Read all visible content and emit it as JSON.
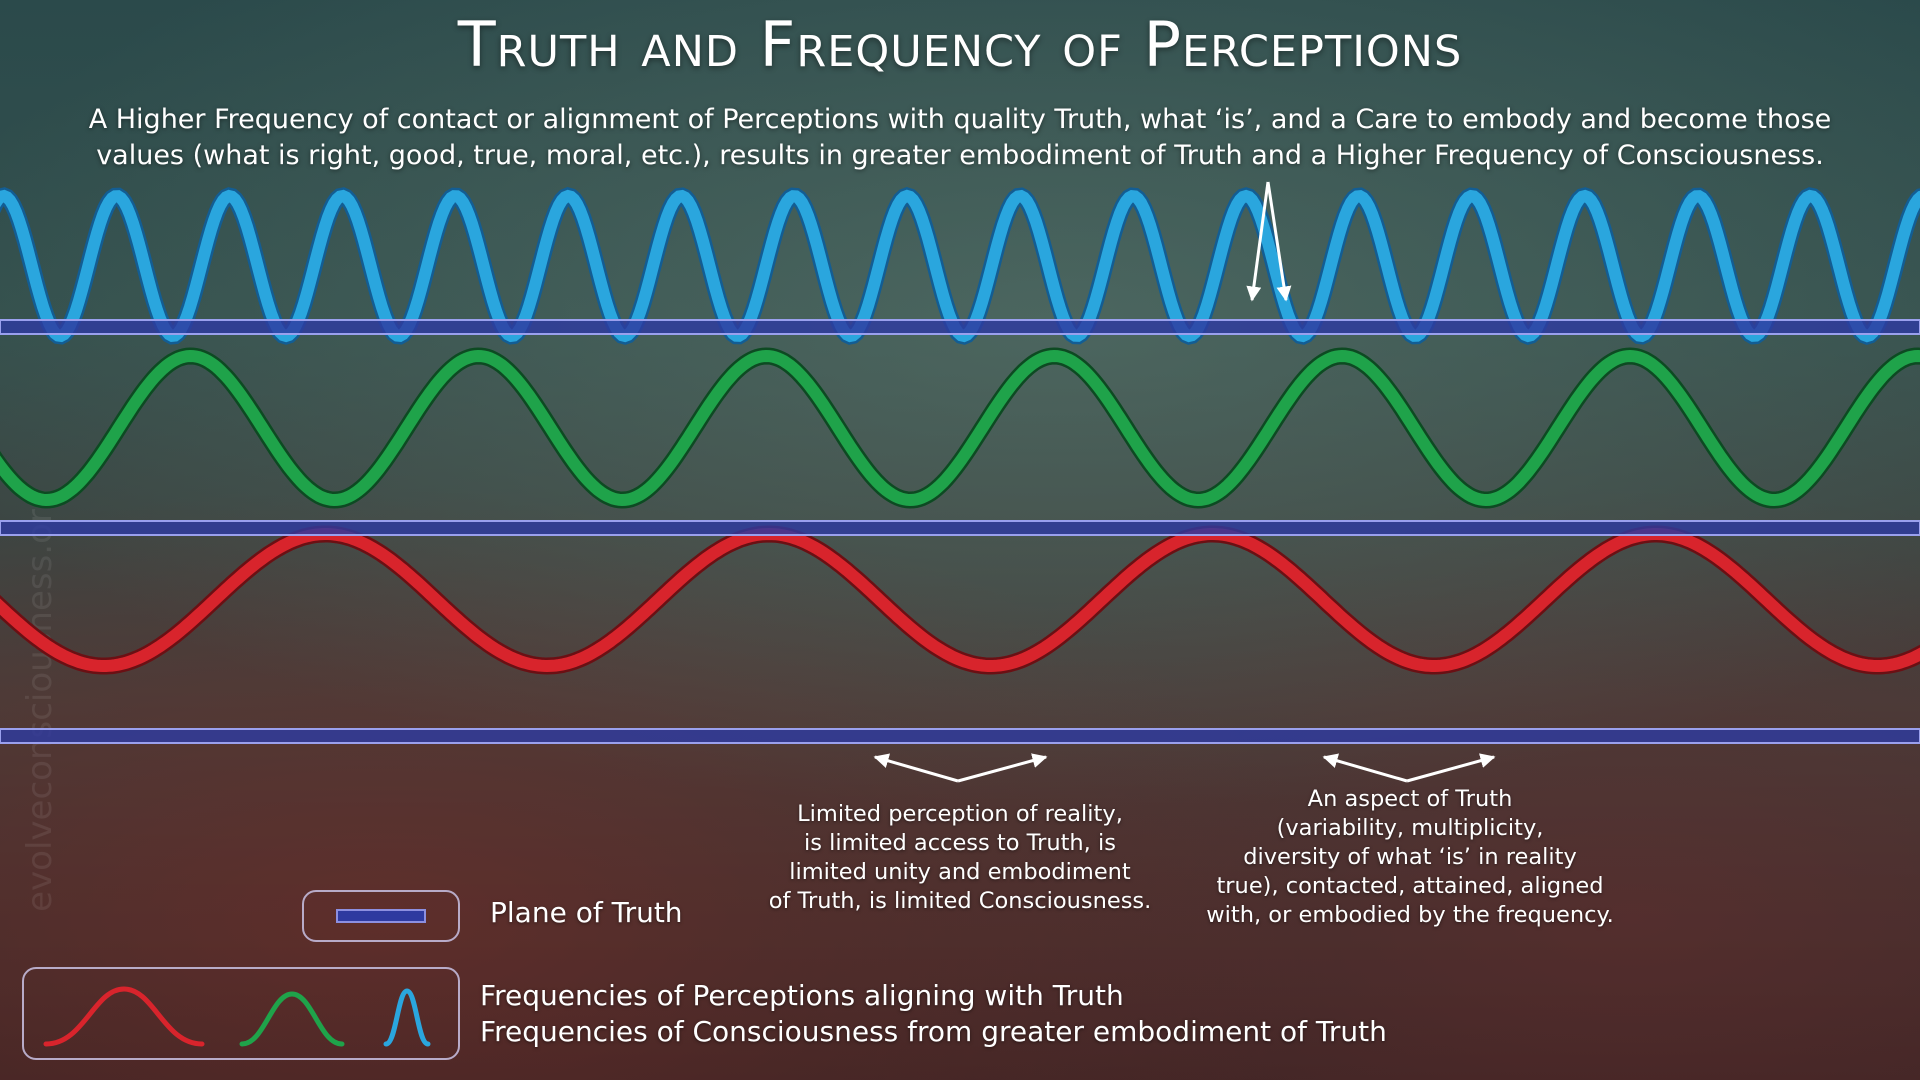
{
  "title": "Truth and Frequency of Perceptions",
  "subtitle_line1": "A Higher Frequency of contact or alignment of Perceptions with quality Truth, what ‘is’, and a Care to embody and become those",
  "subtitle_line2": "values (what is right, good, true, moral, etc.), results in greater embodiment of Truth and a Higher Frequency of Consciousness.",
  "waves": [
    {
      "name": "blue",
      "color": "#2aa6de",
      "dark": "#135d93",
      "cycles_shown": 17
    },
    {
      "name": "green",
      "color": "#1fa34a",
      "dark": "#0d4a22",
      "cycles_shown": 6.67
    },
    {
      "name": "red",
      "color": "#d8242c",
      "dark": "#6a1014",
      "cycles_shown": 4.33
    }
  ],
  "plane_color": "#2e3aa0",
  "annotations": {
    "limited": [
      "Limited perception of reality,",
      "is limited access to Truth, is",
      "limited unity and embodiment",
      "of Truth, is limited Consciousness."
    ],
    "aspect": [
      "An aspect of Truth",
      "(variability, multiplicity,",
      "diversity of what ‘is’ in reality",
      "true), contacted, attained, aligned",
      "with, or embodied by the frequency."
    ]
  },
  "legend": {
    "plane_label": "Plane of Truth",
    "freq_line1": "Frequencies of Perceptions aligning with Truth",
    "freq_line2": "Frequencies of Consciousness from greater embodiment of Truth"
  },
  "watermark": "evolveconsciousness.org"
}
